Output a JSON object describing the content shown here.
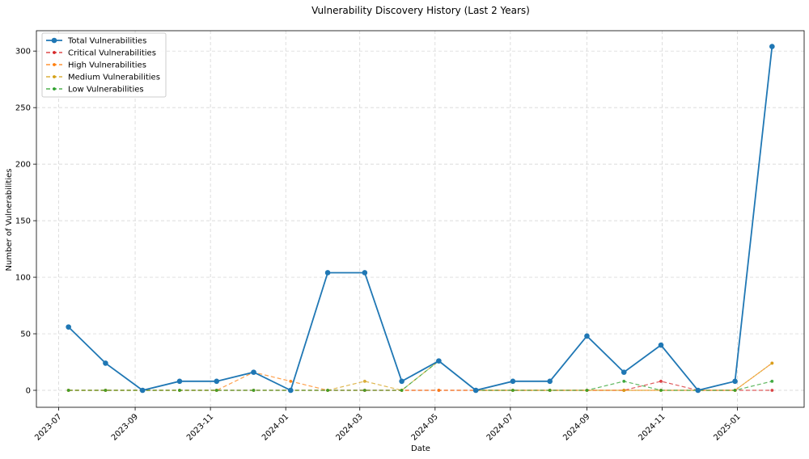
{
  "chart_data": {
    "type": "line",
    "title": "Vulnerability Discovery History (Last 2 Years)",
    "xlabel": "Date",
    "ylabel": "Number of Vulnerabilities",
    "x": [
      "2023-07-09",
      "2023-08-08",
      "2023-09-07",
      "2023-10-07",
      "2023-11-06",
      "2023-12-06",
      "2024-01-05",
      "2024-02-04",
      "2024-03-05",
      "2024-04-04",
      "2024-05-04",
      "2024-06-03",
      "2024-07-03",
      "2024-08-02",
      "2024-09-01",
      "2024-10-01",
      "2024-10-31",
      "2024-11-30",
      "2024-12-30",
      "2025-01-29"
    ],
    "x_ticks": [
      "2023-07",
      "2023-09",
      "2023-11",
      "2024-01",
      "2024-03",
      "2024-05",
      "2024-07",
      "2024-09",
      "2024-11",
      "2025-01"
    ],
    "y_ticks": [
      0,
      50,
      100,
      150,
      200,
      250,
      300
    ],
    "ylim": [
      -15,
      318
    ],
    "xlim": [
      "2023-06-13",
      "2025-02-24"
    ],
    "grid": true,
    "legend_position": "top-left",
    "series": [
      {
        "name": "Total Vulnerabilities",
        "color": "#1f77b4",
        "style": "solid",
        "values": [
          56,
          24,
          0,
          8,
          8,
          16,
          0,
          104,
          104,
          8,
          26,
          0,
          8,
          8,
          48,
          16,
          40,
          0,
          8,
          304
        ]
      },
      {
        "name": "Critical Vulnerabilities",
        "color": "#d62728",
        "style": "dashed",
        "values": [
          0,
          0,
          0,
          0,
          0,
          0,
          0,
          0,
          0,
          0,
          0,
          0,
          0,
          0,
          0,
          0,
          8,
          0,
          0,
          0
        ]
      },
      {
        "name": "High Vulnerabilities",
        "color": "#ff7f0e",
        "style": "dashed",
        "values": [
          0,
          0,
          0,
          0,
          0,
          16,
          8,
          0,
          0,
          0,
          0,
          0,
          0,
          0,
          0,
          0,
          0,
          0,
          0,
          24
        ]
      },
      {
        "name": "Medium Vulnerabilities",
        "color": "#d4a017",
        "style": "dashed",
        "values": [
          0,
          0,
          0,
          0,
          0,
          0,
          0,
          0,
          8,
          0,
          26,
          0,
          0,
          0,
          0,
          0,
          0,
          0,
          0,
          24
        ]
      },
      {
        "name": "Low Vulnerabilities",
        "color": "#2ca02c",
        "style": "dashed",
        "values": [
          0,
          0,
          0,
          0,
          0,
          0,
          0,
          0,
          0,
          0,
          26,
          0,
          0,
          0,
          0,
          8,
          0,
          0,
          0,
          8
        ]
      }
    ]
  }
}
